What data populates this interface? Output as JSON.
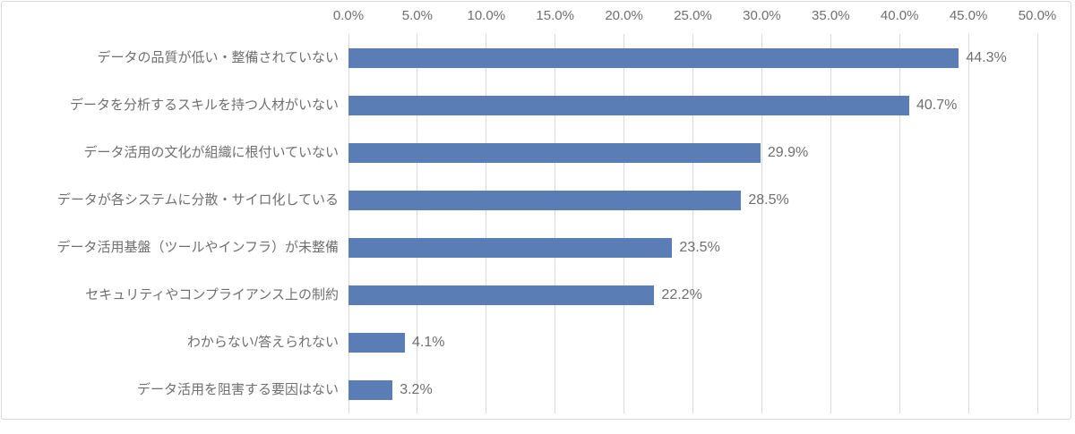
{
  "chart_data": {
    "type": "bar",
    "orientation": "horizontal",
    "title": "",
    "xlabel": "",
    "ylabel": "",
    "xlim": [
      0,
      50
    ],
    "grid": "vertical",
    "legend": "none",
    "x_ticks": [
      "0.0%",
      "5.0%",
      "10.0%",
      "15.0%",
      "20.0%",
      "25.0%",
      "30.0%",
      "35.0%",
      "40.0%",
      "45.0%",
      "50.0%"
    ],
    "x_tick_values": [
      0,
      5,
      10,
      15,
      20,
      25,
      30,
      35,
      40,
      45,
      50
    ],
    "categories": [
      "データの品質が低い・整備されていない",
      "データを分析するスキルを持つ人材がいない",
      "データ活用の文化が組織に根付いていない",
      "データが各システムに分散・サイロ化している",
      "データ活用基盤（ツールやインフラ）が未整備",
      "セキュリティやコンプライアンス上の制約",
      "わからない/答えられない",
      "データ活用を阻害する要因はない"
    ],
    "values": [
      44.3,
      40.7,
      29.9,
      28.5,
      23.5,
      22.2,
      4.1,
      3.2
    ],
    "value_labels": [
      "44.3%",
      "40.7%",
      "29.9%",
      "28.5%",
      "23.5%",
      "22.2%",
      "4.1%",
      "3.2%"
    ],
    "colors": {
      "bar": "#5b7db5",
      "gridline": "#d9d9d9",
      "border": "#d9d9d9",
      "text": "#6f6f6f"
    }
  }
}
